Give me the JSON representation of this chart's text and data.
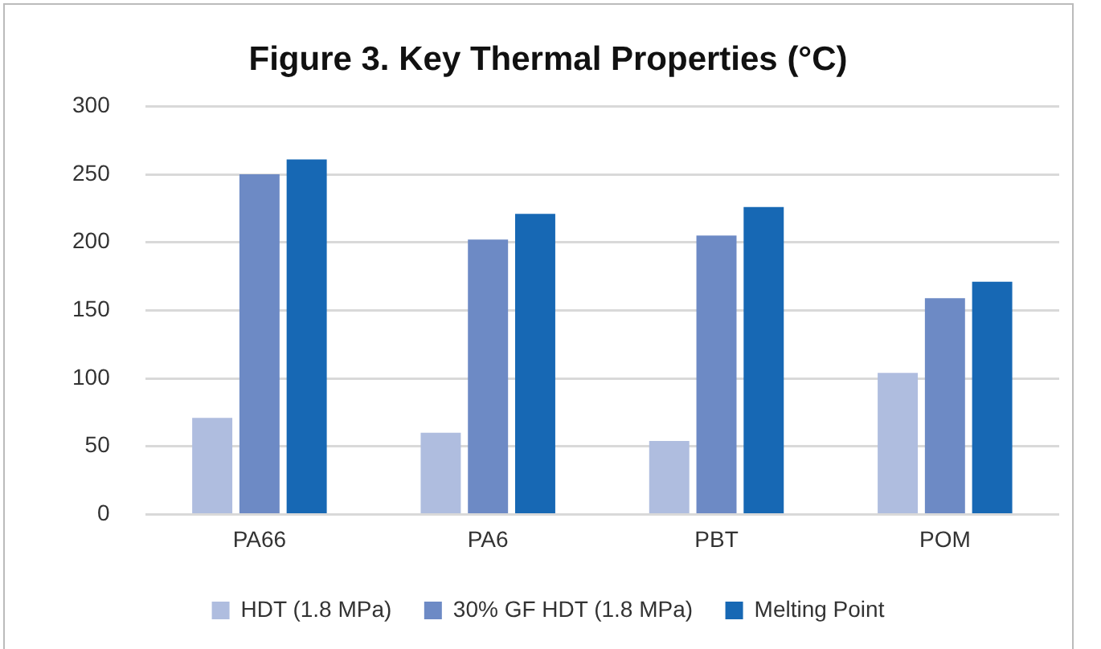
{
  "chart_data": {
    "type": "bar",
    "title": "Figure 3. Key Thermal Properties (°C)",
    "categories": [
      "PA66",
      "PA6",
      "PBT",
      "POM"
    ],
    "series": [
      {
        "name": "HDT (1.8 MPa)",
        "color": "#afbddf",
        "values": [
          71,
          60,
          54,
          104
        ]
      },
      {
        "name": "30% GF HDT (1.8 MPa)",
        "color": "#6d8ac5",
        "values": [
          250,
          202,
          205,
          159
        ]
      },
      {
        "name": "Melting Point",
        "color": "#1768b4",
        "values": [
          261,
          221,
          226,
          171
        ]
      }
    ],
    "ylim": [
      0,
      300
    ],
    "yticks": [
      0,
      50,
      100,
      150,
      200,
      250,
      300
    ],
    "grid": "y",
    "legend": "bottom"
  }
}
